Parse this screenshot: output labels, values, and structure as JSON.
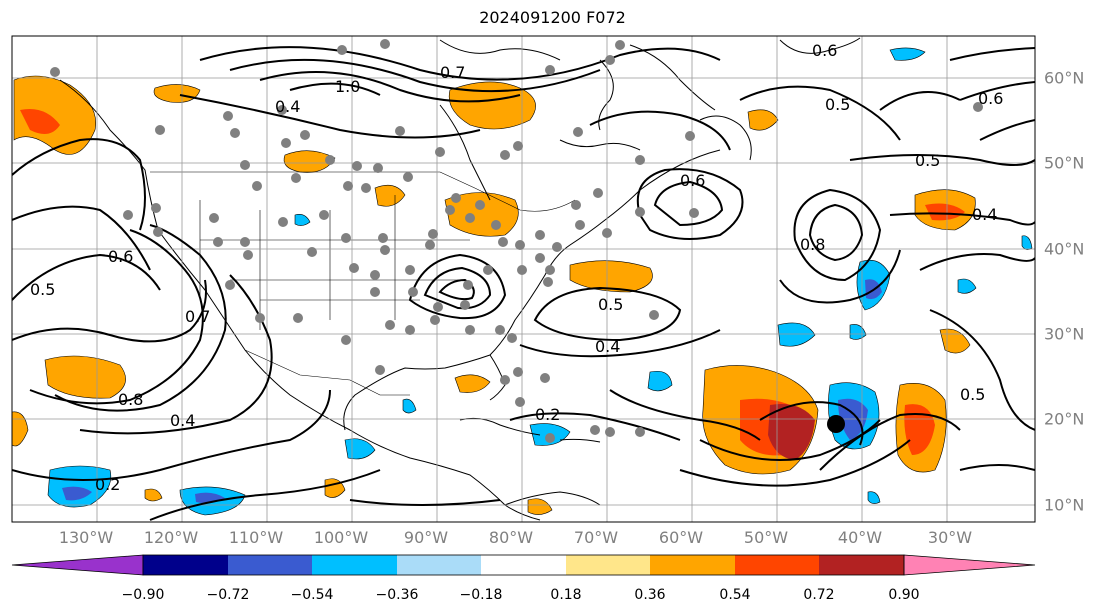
{
  "title": "2024091200 F072",
  "lon_labels": [
    "130°W",
    "120°W",
    "110°W",
    "100°W",
    "90°W",
    "80°W",
    "70°W",
    "60°W",
    "50°W",
    "40°W",
    "30°W"
  ],
  "lat_labels": [
    "60°N",
    "50°N",
    "40°N",
    "30°N",
    "20°N",
    "10°N"
  ],
  "contour_labels": [
    "0.2",
    "0.4",
    "0.5",
    "0.6",
    "0.7",
    "0.8",
    "1.0",
    "0.6",
    "0.5",
    "0.4",
    "0.5",
    "0.6",
    "0.8",
    "0.4",
    "0.2",
    "0.5",
    "0.6",
    "0.7",
    "0.4",
    "0.5"
  ],
  "colorbar": {
    "tick_labels": [
      "−0.90",
      "−0.72",
      "−0.54",
      "−0.36",
      "−0.18",
      "0.18",
      "0.36",
      "0.54",
      "0.72",
      "0.90"
    ],
    "colors": [
      "#9932cc",
      "#00008b",
      "#3a5bd0",
      "#00bfff",
      "#aadcf8",
      "#ffffff",
      "#ffe68a",
      "#ffa500",
      "#ff4500",
      "#b22222",
      "#ff82b4"
    ]
  },
  "colors": {
    "contour": "#000000",
    "grid": "#999999",
    "station": "#808080",
    "positive_weak": "#ffa500",
    "positive_mid": "#ff4500",
    "positive_strong": "#b22222",
    "negative_weak": "#00bfff",
    "negative_mid": "#3a5bd0"
  },
  "storm_marker": "black-dot"
}
